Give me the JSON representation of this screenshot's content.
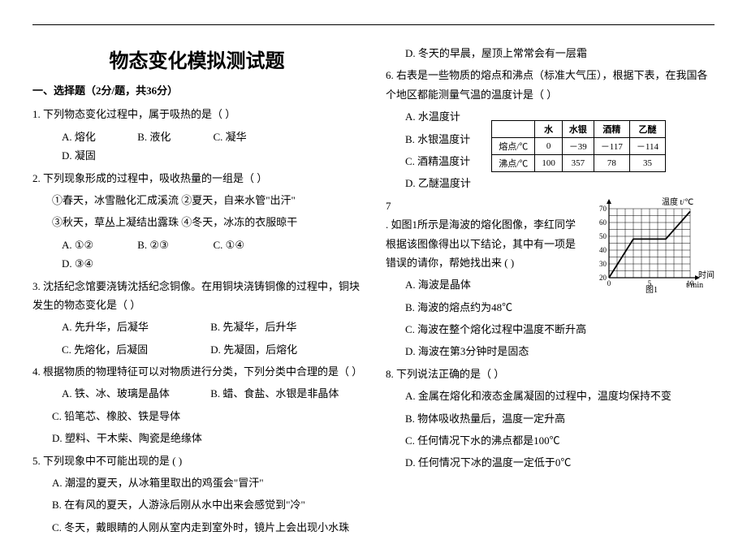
{
  "title": "物态变化模拟测试题",
  "section1": "一、选择题（2分/题，共36分）",
  "q1": {
    "stem": "1.  下列物态变化过程中，属于吸热的是（  ）",
    "A": "A.  熔化",
    "B": "B.  液化",
    "C": "C.  凝华",
    "D": "D.  凝固"
  },
  "q2": {
    "stem": "2.  下列现象形成的过程中，吸收热量的一组是（ ）",
    "l1": "①春天，冰雪融化汇成溪流    ②夏天，自来水管\"出汗\"",
    "l2": "③秋天，草丛上凝结出露珠    ④冬天，冰冻的衣服晾干",
    "A": "A.  ①②",
    "B": "B.  ②③",
    "C": "C.  ①④",
    "D": "D.  ③④"
  },
  "q3": {
    "stem": "3.  沈括纪念馆要浇铸沈括纪念铜像。在用铜块浇铸铜像的过程中，铜块发生的物态变化是（    ）",
    "A": "A.  先升华，后凝华",
    "B": "B.  先凝华，后升华",
    "C": "C.  先熔化，后凝固",
    "D": "D.  先凝固，后熔化"
  },
  "q4": {
    "stem": "4.  根据物质的物理特征可以对物质进行分类，下列分类中合理的是（  ）",
    "A": "A.  铁、冰、玻璃是晶体",
    "B": "B.  蜡、食盐、水银是非晶体",
    "C": "C.  铅笔芯、橡胶、铁是导体",
    "D": "D.  塑料、干木柴、陶瓷是绝缘体"
  },
  "q5": {
    "stem": "5.  下列现象中不可能出现的是      (      )",
    "A": "A.  潮湿的夏天，从冰箱里取出的鸡蛋会\"冒汗\"",
    "B": "B.  在有风的夏天，人游泳后刚从水中出来会感觉到\"冷\"",
    "C": "C.  冬天，戴眼睛的人刚从室内走到室外时，镜片上会出现小水珠",
    "D": "D.  冬天的早晨，屋顶上常常会有一层霜"
  },
  "q6": {
    "stem": "6.  右表是一些物质的熔点和沸点（标准大气压），根据下表，在我国各个地区都能测量气温的温度计是（  ）",
    "A": "A.  水温度计",
    "B": "B.  水银温度计",
    "C": "C.  酒精温度计",
    "D": "D.  乙醚温度计",
    "table": {
      "head": [
        "",
        "水",
        "水银",
        "酒精",
        "乙醚"
      ],
      "r1": [
        "熔点/℃",
        "0",
        "－39",
        "－117",
        "－114"
      ],
      "r2": [
        "沸点/℃",
        "100",
        "357",
        "78",
        "35"
      ]
    }
  },
  "q7": {
    "pre": "7",
    "stem": ".  如图1所示是海波的熔化图像，李红同学根据该图像得出以下结论，其中有一项是错误的请你，帮她找出来  (       )",
    "A": "A.  海波是晶体",
    "B": "B.  海波的熔点约为48℃",
    "C": "C.  海波在整个熔化过程中温度不断升高",
    "D": "D.  海波在第3分钟时是固态",
    "chart": {
      "ylabel": "温度 t/℃",
      "xlabel": "时间",
      "xunit": "t/min",
      "figlabel": "图1",
      "yticks": [
        20,
        30,
        40,
        50,
        60,
        70
      ],
      "xticks": [
        0,
        5,
        10
      ],
      "grid_color": "#000",
      "line_color": "#000",
      "bg": "#fff",
      "points": [
        [
          0,
          20
        ],
        [
          3,
          48
        ],
        [
          7,
          48
        ],
        [
          10,
          68
        ]
      ]
    }
  },
  "q8": {
    "stem": "8.  下列说法正确的是（  ）",
    "A": "A.  金属在熔化和液态金属凝固的过程中，温度均保持不变",
    "B": "B.  物体吸收热量后，温度一定升高",
    "C": "C.  任何情况下水的沸点都是100℃",
    "D": "D.  任何情况下冰的温度一定低于0℃"
  }
}
